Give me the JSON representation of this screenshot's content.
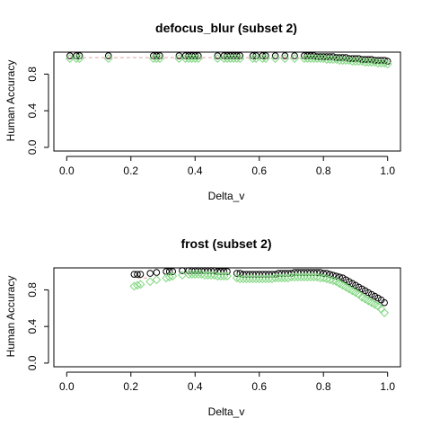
{
  "chart_data": [
    {
      "type": "scatter",
      "title": "defocus_blur (subset 2)",
      "xlabel": "Delta_v",
      "ylabel": "Human Accuracy",
      "xlim": [
        -0.04,
        1.04
      ],
      "ylim": [
        -0.04,
        1.04
      ],
      "xticks": [
        "0.0",
        "0.2",
        "0.4",
        "0.6",
        "0.8",
        "1.0"
      ],
      "yticks": [
        "0.0",
        "0.4",
        "0.8"
      ],
      "grid": false,
      "legend": "none",
      "reference_line": {
        "y": 0.98,
        "style": "dashed",
        "color": "#e8a0a0"
      },
      "series": [
        {
          "marker": "open-circle",
          "color": "#000000",
          "x": [
            0.01,
            0.03,
            0.04,
            0.13,
            0.27,
            0.28,
            0.29,
            0.35,
            0.37,
            0.38,
            0.39,
            0.4,
            0.41,
            0.47,
            0.49,
            0.5,
            0.51,
            0.52,
            0.53,
            0.54,
            0.58,
            0.59,
            0.61,
            0.62,
            0.65,
            0.68,
            0.71,
            0.74,
            0.75,
            0.76,
            0.77,
            0.78,
            0.79,
            0.8,
            0.81,
            0.82,
            0.83,
            0.84,
            0.85,
            0.86,
            0.87,
            0.88,
            0.89,
            0.9,
            0.91,
            0.92,
            0.93,
            0.94,
            0.95,
            0.96,
            0.97,
            0.98,
            0.99,
            1.0
          ],
          "y": [
            1.0,
            1.0,
            1.0,
            1.0,
            1.0,
            1.0,
            1.0,
            1.0,
            1.0,
            1.0,
            1.0,
            1.0,
            1.0,
            1.0,
            1.0,
            1.0,
            1.0,
            1.0,
            1.0,
            1.0,
            1.0,
            1.0,
            1.0,
            1.0,
            1.0,
            1.0,
            1.0,
            1.0,
            1.0,
            1.0,
            1.0,
            0.99,
            0.99,
            0.99,
            0.99,
            0.99,
            0.99,
            0.98,
            0.98,
            0.98,
            0.98,
            0.97,
            0.97,
            0.97,
            0.97,
            0.96,
            0.96,
            0.96,
            0.96,
            0.95,
            0.95,
            0.95,
            0.95,
            0.94
          ]
        },
        {
          "marker": "open-diamond",
          "color": "#7ed67e",
          "x": [
            0.01,
            0.03,
            0.04,
            0.13,
            0.27,
            0.28,
            0.29,
            0.35,
            0.37,
            0.38,
            0.39,
            0.4,
            0.41,
            0.47,
            0.49,
            0.5,
            0.51,
            0.52,
            0.53,
            0.54,
            0.58,
            0.59,
            0.61,
            0.62,
            0.65,
            0.68,
            0.71,
            0.74,
            0.75,
            0.76,
            0.77,
            0.78,
            0.79,
            0.8,
            0.81,
            0.82,
            0.83,
            0.84,
            0.85,
            0.86,
            0.87,
            0.88,
            0.89,
            0.9,
            0.91,
            0.92,
            0.93,
            0.94,
            0.95,
            0.96,
            0.97,
            0.98,
            0.99,
            1.0
          ],
          "y": [
            0.97,
            0.97,
            0.97,
            0.97,
            0.97,
            0.97,
            0.97,
            0.97,
            0.97,
            0.97,
            0.97,
            0.97,
            0.97,
            0.97,
            0.97,
            0.97,
            0.97,
            0.97,
            0.97,
            0.97,
            0.97,
            0.97,
            0.97,
            0.97,
            0.97,
            0.97,
            0.97,
            0.97,
            0.97,
            0.97,
            0.97,
            0.97,
            0.97,
            0.97,
            0.96,
            0.96,
            0.96,
            0.96,
            0.95,
            0.95,
            0.95,
            0.95,
            0.94,
            0.94,
            0.94,
            0.94,
            0.93,
            0.93,
            0.93,
            0.93,
            0.92,
            0.92,
            0.92,
            0.91
          ]
        }
      ]
    },
    {
      "type": "scatter",
      "title": "frost (subset 2)",
      "xlabel": "Delta_v",
      "ylabel": "Human Accuracy",
      "xlim": [
        -0.04,
        1.04
      ],
      "ylim": [
        -0.04,
        1.04
      ],
      "xticks": [
        "0.0",
        "0.2",
        "0.4",
        "0.6",
        "0.8",
        "1.0"
      ],
      "yticks": [
        "0.0",
        "0.4",
        "0.8"
      ],
      "grid": false,
      "legend": "none",
      "reference_line": {
        "x_from": 0.22,
        "x_to": 0.26,
        "y": 0.93,
        "style": "dashed",
        "color": "#e8a0a0"
      },
      "series": [
        {
          "marker": "open-circle",
          "color": "#000000",
          "x": [
            0.21,
            0.22,
            0.23,
            0.26,
            0.28,
            0.31,
            0.32,
            0.33,
            0.36,
            0.38,
            0.39,
            0.4,
            0.41,
            0.42,
            0.43,
            0.44,
            0.45,
            0.46,
            0.47,
            0.48,
            0.49,
            0.5,
            0.53,
            0.54,
            0.55,
            0.56,
            0.57,
            0.58,
            0.59,
            0.6,
            0.61,
            0.62,
            0.63,
            0.64,
            0.65,
            0.66,
            0.67,
            0.68,
            0.69,
            0.7,
            0.71,
            0.72,
            0.73,
            0.74,
            0.75,
            0.76,
            0.77,
            0.78,
            0.79,
            0.8,
            0.81,
            0.82,
            0.83,
            0.84,
            0.85,
            0.86,
            0.87,
            0.88,
            0.89,
            0.9,
            0.91,
            0.92,
            0.93,
            0.94,
            0.95,
            0.96,
            0.97,
            0.98,
            0.99
          ],
          "y": [
            0.97,
            0.97,
            0.97,
            0.98,
            0.99,
            1.0,
            1.0,
            1.0,
            1.01,
            1.01,
            1.01,
            1.01,
            1.01,
            1.01,
            1.01,
            1.01,
            1.01,
            1.01,
            1.0,
            1.0,
            1.0,
            1.0,
            0.98,
            0.98,
            0.97,
            0.97,
            0.97,
            0.97,
            0.97,
            0.97,
            0.97,
            0.97,
            0.97,
            0.97,
            0.97,
            0.98,
            0.98,
            0.98,
            0.98,
            0.98,
            0.99,
            0.99,
            0.99,
            0.99,
            0.99,
            0.99,
            0.99,
            0.99,
            0.99,
            0.98,
            0.98,
            0.97,
            0.96,
            0.95,
            0.94,
            0.93,
            0.91,
            0.89,
            0.87,
            0.85,
            0.83,
            0.81,
            0.79,
            0.77,
            0.75,
            0.73,
            0.71,
            0.69,
            0.66
          ]
        },
        {
          "marker": "open-diamond",
          "color": "#7ed67e",
          "x": [
            0.21,
            0.22,
            0.23,
            0.26,
            0.28,
            0.31,
            0.32,
            0.33,
            0.36,
            0.38,
            0.39,
            0.4,
            0.41,
            0.42,
            0.43,
            0.44,
            0.45,
            0.46,
            0.47,
            0.48,
            0.49,
            0.5,
            0.53,
            0.54,
            0.55,
            0.56,
            0.57,
            0.58,
            0.59,
            0.6,
            0.61,
            0.62,
            0.63,
            0.64,
            0.65,
            0.66,
            0.67,
            0.68,
            0.69,
            0.7,
            0.71,
            0.72,
            0.73,
            0.74,
            0.75,
            0.76,
            0.77,
            0.78,
            0.79,
            0.8,
            0.81,
            0.82,
            0.83,
            0.84,
            0.85,
            0.86,
            0.87,
            0.88,
            0.89,
            0.9,
            0.91,
            0.92,
            0.93,
            0.94,
            0.95,
            0.96,
            0.97,
            0.98,
            0.99
          ],
          "y": [
            0.84,
            0.85,
            0.86,
            0.89,
            0.91,
            0.93,
            0.94,
            0.95,
            0.96,
            0.97,
            0.97,
            0.97,
            0.97,
            0.97,
            0.96,
            0.96,
            0.96,
            0.96,
            0.95,
            0.95,
            0.95,
            0.95,
            0.93,
            0.92,
            0.92,
            0.92,
            0.92,
            0.92,
            0.92,
            0.92,
            0.92,
            0.92,
            0.92,
            0.92,
            0.93,
            0.93,
            0.93,
            0.93,
            0.93,
            0.94,
            0.94,
            0.94,
            0.94,
            0.94,
            0.94,
            0.94,
            0.94,
            0.94,
            0.93,
            0.93,
            0.92,
            0.91,
            0.9,
            0.89,
            0.87,
            0.85,
            0.83,
            0.81,
            0.79,
            0.77,
            0.75,
            0.72,
            0.7,
            0.68,
            0.66,
            0.64,
            0.62,
            0.59,
            0.55
          ]
        }
      ]
    }
  ]
}
